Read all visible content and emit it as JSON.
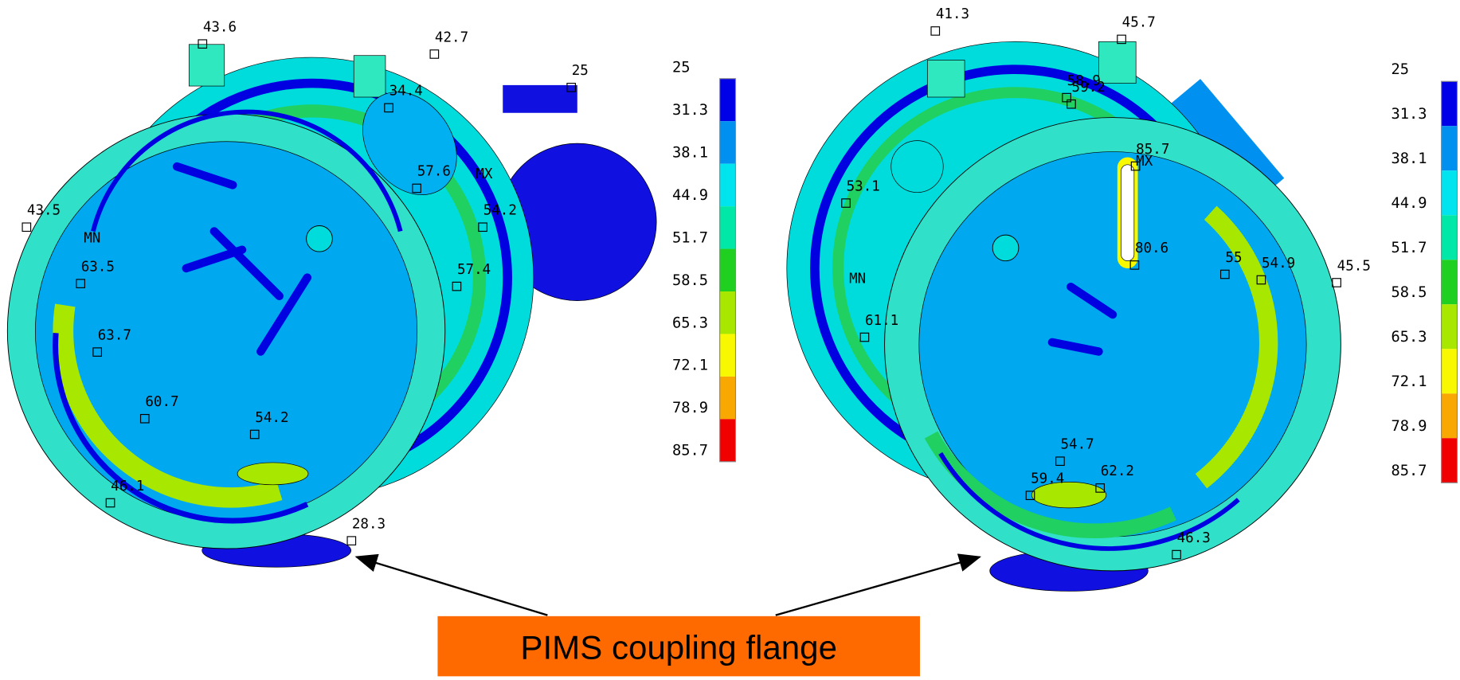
{
  "left_model": {
    "probes": [
      "43.6",
      "42.7",
      "25",
      "34.4",
      "57.6",
      "MX",
      "54.2",
      "57.4",
      "43.5",
      "MN",
      "63.5",
      "63.7",
      "60.7",
      "54.2",
      "46.1",
      "28.3"
    ],
    "legend": {
      "levels": [
        "25",
        "31.3",
        "38.1",
        "44.9",
        "51.7",
        "58.5",
        "65.3",
        "72.1",
        "78.9",
        "85.7"
      ],
      "colors": [
        "#0000e8",
        "#0090f0",
        "#00e4f0",
        "#00e8a8",
        "#20d020",
        "#a8e800",
        "#f8f800",
        "#f8a800",
        "#f00000"
      ]
    }
  },
  "right_model": {
    "probes": [
      "41.3",
      "45.7",
      "58.9",
      "59.2",
      "85.7",
      "MX",
      "53.1",
      "80.6",
      "55",
      "54.9",
      "45.5",
      "MN",
      "61.1",
      "54.7",
      "59.4",
      "62.2",
      "46.3"
    ],
    "legend": {
      "levels": [
        "25",
        "31.3",
        "38.1",
        "44.9",
        "51.7",
        "58.5",
        "65.3",
        "72.1",
        "78.9",
        "85.7"
      ],
      "colors": [
        "#0000e8",
        "#0090f0",
        "#00e4f0",
        "#00e8a8",
        "#20d020",
        "#a8e800",
        "#f8f800",
        "#f8a800",
        "#f00000"
      ]
    }
  },
  "callout": "PIMS coupling flange"
}
